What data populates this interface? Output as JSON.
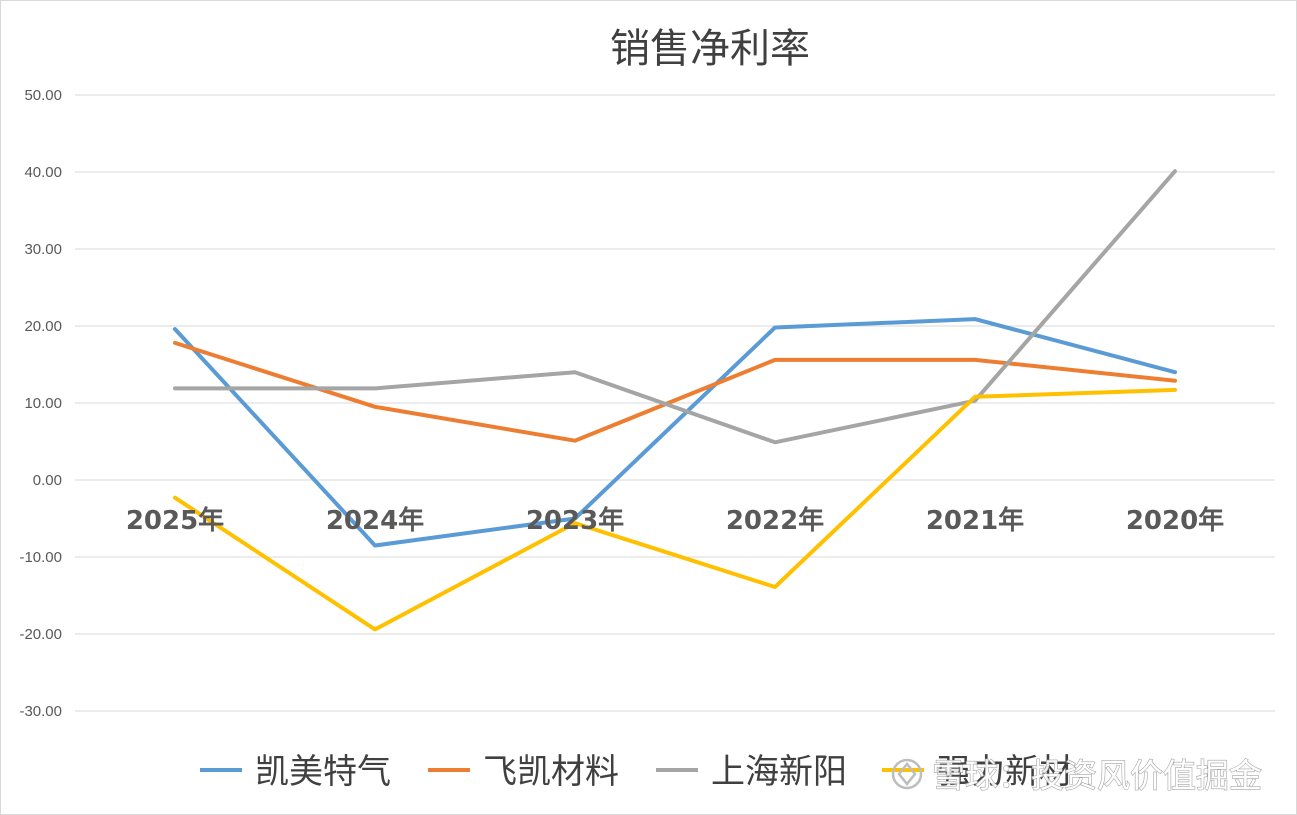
{
  "chart_data": {
    "type": "line",
    "title": "销售净利率",
    "categories": [
      "2025年",
      "2024年",
      "2023年",
      "2022年",
      "2021年",
      "2020年"
    ],
    "ylim": [
      -30,
      50
    ],
    "yticks": [
      "50.00",
      "40.00",
      "30.00",
      "20.00",
      "10.00",
      "0.00",
      "-10.00",
      "-20.00",
      "-30.00"
    ],
    "grid": true,
    "legend_position": "bottom",
    "series": [
      {
        "name": "凯美特气",
        "color": "#5B9BD5",
        "values": [
          19.6,
          -8.5,
          -5.0,
          19.8,
          20.9,
          14.0
        ]
      },
      {
        "name": "飞凯材料",
        "color": "#ED7D31",
        "values": [
          17.8,
          9.5,
          5.1,
          15.6,
          15.6,
          12.9
        ]
      },
      {
        "name": "上海新阳",
        "color": "#A5A5A5",
        "values": [
          11.9,
          11.9,
          14.0,
          4.9,
          10.3,
          40.1
        ]
      },
      {
        "name": "强力新材",
        "color": "#FFC000",
        "values": [
          -2.3,
          -19.4,
          -5.6,
          -13.9,
          10.8,
          11.7
        ]
      }
    ]
  },
  "watermark": {
    "text": "雪球：投资风价值掘金",
    "icon": "snowball-logo-icon"
  }
}
